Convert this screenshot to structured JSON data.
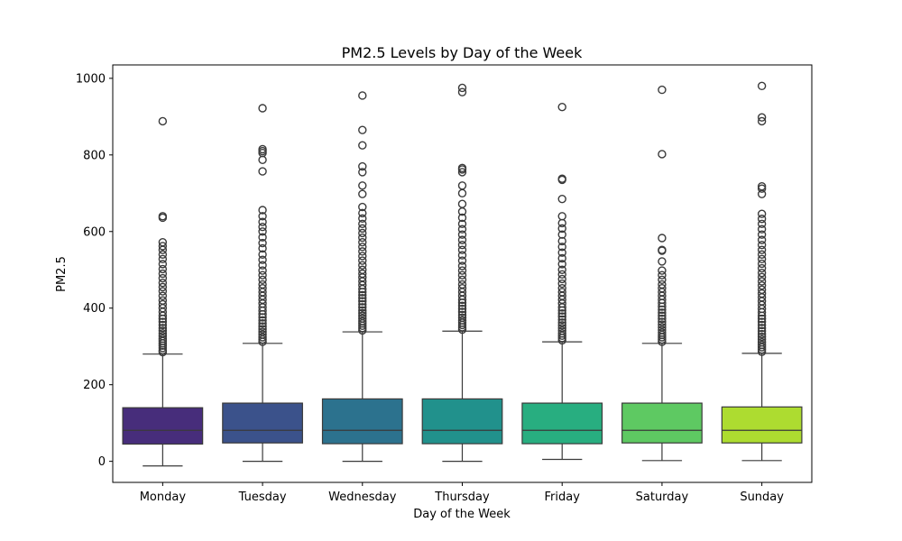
{
  "chart_data": {
    "type": "box",
    "title": "PM2.5 Levels by Day of the Week",
    "xlabel": "Day of the Week",
    "ylabel": "PM2.5",
    "ylim": [
      -55,
      1035
    ],
    "yticks": [
      0,
      200,
      400,
      600,
      800,
      1000
    ],
    "grid": false,
    "legend": "none",
    "categories": [
      "Monday",
      "Tuesday",
      "Wednesday",
      "Thursday",
      "Friday",
      "Saturday",
      "Sunday"
    ],
    "colors": [
      "#472d7b",
      "#3b528b",
      "#2c728e",
      "#21918c",
      "#28ae80",
      "#5ec962",
      "#addc30"
    ],
    "boxes": [
      {
        "whislo": -12,
        "q1": 45,
        "med": 81,
        "q3": 140,
        "whishi": 280,
        "fliers": [
          285,
          290,
          296,
          302,
          308,
          314,
          320,
          327,
          334,
          341,
          348,
          356,
          364,
          372,
          380,
          390,
          400,
          410,
          420,
          432,
          444,
          455,
          466,
          478,
          490,
          502,
          515,
          528,
          540,
          552,
          562,
          572,
          636,
          640,
          888
        ]
      },
      {
        "whislo": 0,
        "q1": 48,
        "med": 81,
        "q3": 152,
        "whishi": 308,
        "fliers": [
          312,
          318,
          324,
          331,
          338,
          345,
          352,
          360,
          368,
          376,
          384,
          393,
          402,
          412,
          422,
          432,
          442,
          452,
          462,
          474,
          486,
          498,
          512,
          526,
          540,
          556,
          570,
          585,
          600,
          612,
          625,
          640,
          656,
          757,
          787,
          805,
          810,
          815,
          922
        ]
      },
      {
        "whislo": 0,
        "q1": 46,
        "med": 81,
        "q3": 163,
        "whishi": 338,
        "fliers": [
          342,
          348,
          354,
          360,
          366,
          373,
          380,
          387,
          394,
          402,
          410,
          418,
          426,
          434,
          442,
          450,
          460,
          470,
          480,
          490,
          500,
          512,
          524,
          536,
          548,
          560,
          572,
          584,
          596,
          608,
          620,
          634,
          648,
          664,
          698,
          720,
          755,
          770,
          825,
          865,
          955
        ]
      },
      {
        "whislo": 0,
        "q1": 46,
        "med": 81,
        "q3": 163,
        "whishi": 340,
        "fliers": [
          344,
          350,
          356,
          362,
          368,
          375,
          382,
          390,
          398,
          406,
          414,
          422,
          432,
          442,
          452,
          462,
          474,
          486,
          498,
          510,
          524,
          538,
          552,
          565,
          578,
          592,
          606,
          620,
          636,
          652,
          672,
          700,
          720,
          755,
          762,
          766,
          964,
          975
        ]
      },
      {
        "whislo": 5,
        "q1": 46,
        "med": 81,
        "q3": 152,
        "whishi": 312,
        "fliers": [
          316,
          322,
          328,
          334,
          341,
          348,
          355,
          362,
          370,
          378,
          386,
          394,
          402,
          412,
          422,
          432,
          442,
          452,
          464,
          476,
          488,
          500,
          515,
          530,
          545,
          560,
          575,
          592,
          608,
          622,
          640,
          685,
          735,
          738,
          925
        ]
      },
      {
        "whislo": 2,
        "q1": 48,
        "med": 81,
        "q3": 152,
        "whishi": 308,
        "fliers": [
          312,
          318,
          324,
          330,
          336,
          343,
          350,
          357,
          364,
          372,
          380,
          388,
          396,
          404,
          413,
          422,
          432,
          442,
          452,
          462,
          474,
          486,
          498,
          522,
          550,
          552,
          583,
          802,
          970
        ]
      },
      {
        "whislo": 2,
        "q1": 48,
        "med": 81,
        "q3": 142,
        "whishi": 282,
        "fliers": [
          286,
          292,
          298,
          304,
          311,
          318,
          325,
          332,
          340,
          348,
          356,
          364,
          372,
          380,
          389,
          398,
          408,
          418,
          428,
          438,
          448,
          459,
          470,
          481,
          492,
          504,
          516,
          528,
          540,
          552,
          565,
          578,
          592,
          606,
          620,
          633,
          646,
          698,
          712,
          718,
          888,
          898,
          980
        ]
      }
    ]
  }
}
